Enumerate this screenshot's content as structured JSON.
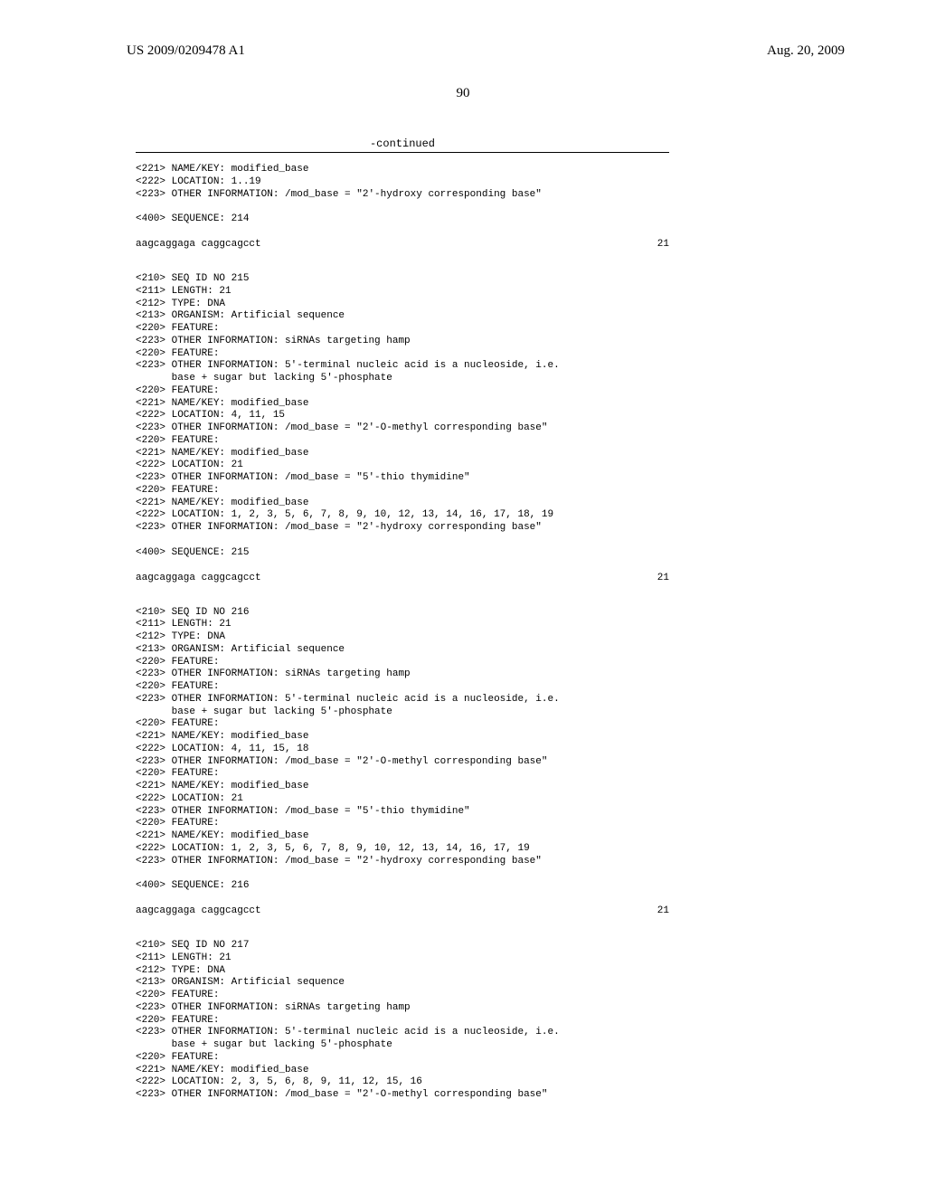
{
  "header": {
    "pub_number": "US 2009/0209478 A1",
    "pub_date": "Aug. 20, 2009"
  },
  "page_number": "90",
  "continued_label": "-continued",
  "blocks": {
    "b0": {
      "l1": "<221> NAME/KEY: modified_base",
      "l2": "<222> LOCATION: 1..19",
      "l3": "<223> OTHER INFORMATION: /mod_base = \"2'-hydroxy corresponding base\"",
      "l4": "<400> SEQUENCE: 214",
      "seq": "aagcaggaga caggcagcct",
      "len": "21"
    },
    "b1": {
      "l1": "<210> SEQ ID NO 215",
      "l2": "<211> LENGTH: 21",
      "l3": "<212> TYPE: DNA",
      "l4": "<213> ORGANISM: Artificial sequence",
      "l5": "<220> FEATURE:",
      "l6": "<223> OTHER INFORMATION: siRNAs targeting hamp",
      "l7": "<220> FEATURE:",
      "l8": "<223> OTHER INFORMATION: 5'-terminal nucleic acid is a nucleoside, i.e.",
      "l9": "      base + sugar but lacking 5'-phosphate",
      "l10": "<220> FEATURE:",
      "l11": "<221> NAME/KEY: modified_base",
      "l12": "<222> LOCATION: 4, 11, 15",
      "l13": "<223> OTHER INFORMATION: /mod_base = \"2'-O-methyl corresponding base\"",
      "l14": "<220> FEATURE:",
      "l15": "<221> NAME/KEY: modified_base",
      "l16": "<222> LOCATION: 21",
      "l17": "<223> OTHER INFORMATION: /mod_base = \"5'-thio thymidine\"",
      "l18": "<220> FEATURE:",
      "l19": "<221> NAME/KEY: modified_base",
      "l20": "<222> LOCATION: 1, 2, 3, 5, 6, 7, 8, 9, 10, 12, 13, 14, 16, 17, 18, 19",
      "l21": "<223> OTHER INFORMATION: /mod_base = \"2'-hydroxy corresponding base\"",
      "l22": "<400> SEQUENCE: 215",
      "seq": "aagcaggaga caggcagcct",
      "len": "21"
    },
    "b2": {
      "l1": "<210> SEQ ID NO 216",
      "l2": "<211> LENGTH: 21",
      "l3": "<212> TYPE: DNA",
      "l4": "<213> ORGANISM: Artificial sequence",
      "l5": "<220> FEATURE:",
      "l6": "<223> OTHER INFORMATION: siRNAs targeting hamp",
      "l7": "<220> FEATURE:",
      "l8": "<223> OTHER INFORMATION: 5'-terminal nucleic acid is a nucleoside, i.e.",
      "l9": "      base + sugar but lacking 5'-phosphate",
      "l10": "<220> FEATURE:",
      "l11": "<221> NAME/KEY: modified_base",
      "l12": "<222> LOCATION: 4, 11, 15, 18",
      "l13": "<223> OTHER INFORMATION: /mod_base = \"2'-O-methyl corresponding base\"",
      "l14": "<220> FEATURE:",
      "l15": "<221> NAME/KEY: modified_base",
      "l16": "<222> LOCATION: 21",
      "l17": "<223> OTHER INFORMATION: /mod_base = \"5'-thio thymidine\"",
      "l18": "<220> FEATURE:",
      "l19": "<221> NAME/KEY: modified_base",
      "l20": "<222> LOCATION: 1, 2, 3, 5, 6, 7, 8, 9, 10, 12, 13, 14, 16, 17, 19",
      "l21": "<223> OTHER INFORMATION: /mod_base = \"2'-hydroxy corresponding base\"",
      "l22": "<400> SEQUENCE: 216",
      "seq": "aagcaggaga caggcagcct",
      "len": "21"
    },
    "b3": {
      "l1": "<210> SEQ ID NO 217",
      "l2": "<211> LENGTH: 21",
      "l3": "<212> TYPE: DNA",
      "l4": "<213> ORGANISM: Artificial sequence",
      "l5": "<220> FEATURE:",
      "l6": "<223> OTHER INFORMATION: siRNAs targeting hamp",
      "l7": "<220> FEATURE:",
      "l8": "<223> OTHER INFORMATION: 5'-terminal nucleic acid is a nucleoside, i.e.",
      "l9": "      base + sugar but lacking 5'-phosphate",
      "l10": "<220> FEATURE:",
      "l11": "<221> NAME/KEY: modified_base",
      "l12": "<222> LOCATION: 2, 3, 5, 6, 8, 9, 11, 12, 15, 16",
      "l13": "<223> OTHER INFORMATION: /mod_base = \"2'-O-methyl corresponding base\""
    }
  }
}
